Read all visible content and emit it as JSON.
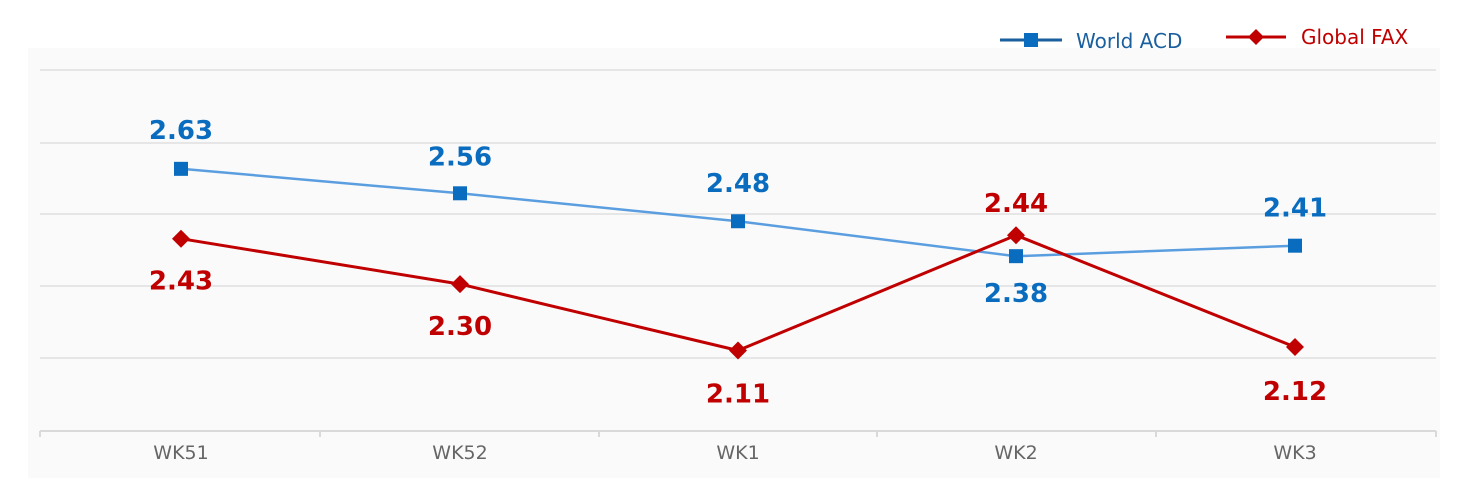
{
  "chart_data": {
    "type": "line",
    "categories": [
      "WK51",
      "WK52",
      "WK1",
      "WK2",
      "WK3"
    ],
    "series": [
      {
        "name": "World ACD",
        "values": [
          2.63,
          2.56,
          2.48,
          2.38,
          2.41
        ],
        "labels": [
          "2.63",
          "2.56",
          "2.48",
          "2.38",
          "2.41"
        ],
        "color": "#0a6cbe",
        "line_color": "#5b9ee0",
        "label_color": "#0a6cbe",
        "legend_color": "#1a5f9e",
        "marker": "square"
      },
      {
        "name": "Global FAX",
        "values": [
          2.43,
          2.3,
          2.11,
          2.44,
          2.12
        ],
        "labels": [
          "2.43",
          "2.30",
          "2.11",
          "2.44",
          "2.12"
        ],
        "color": "#c00000",
        "line_color": "#c00000",
        "label_color": "#c00000",
        "legend_color": "#c00000",
        "marker": "diamond"
      }
    ],
    "legend_position": "top-right",
    "grid": true,
    "y_axis_labels_visible": false,
    "background": "#fafafa",
    "grid_color": "#e6e6e6"
  }
}
